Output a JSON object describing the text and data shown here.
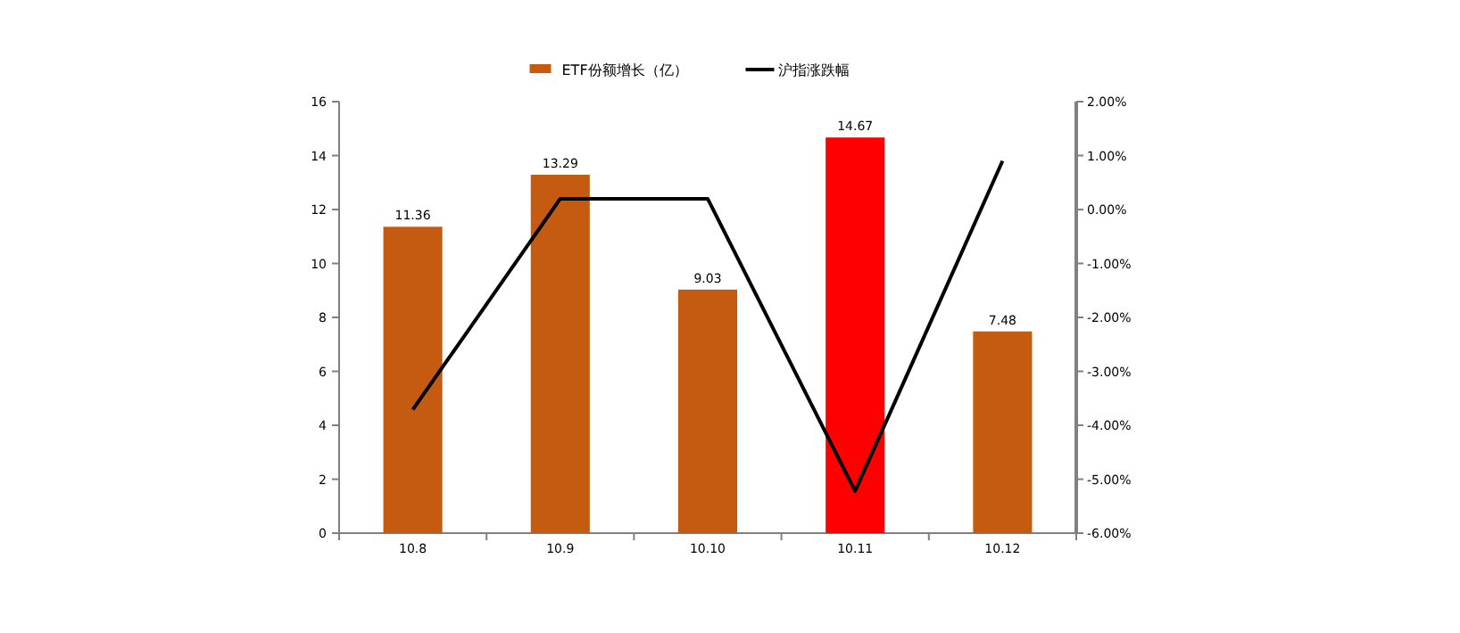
{
  "chart_data": {
    "type": "bar",
    "categories": [
      "10.8",
      "10.9",
      "10.10",
      "10.11",
      "10.12"
    ],
    "series": [
      {
        "name": "ETF份额增长（亿）",
        "color": "#c55a11",
        "colors": [
          "#c55a11",
          "#c55a11",
          "#c55a11",
          "#ff0000",
          "#c55a11"
        ],
        "values": [
          11.36,
          13.29,
          9.03,
          14.67,
          7.48
        ],
        "value_labels": [
          "11.36",
          "13.29",
          "9.03",
          "14.67",
          "7.48"
        ]
      },
      {
        "name": "沪指涨跌幅",
        "type": "line",
        "axis": "y2",
        "color": "#000000",
        "values": [
          -3.71,
          0.2,
          0.2,
          -5.22,
          0.9
        ]
      }
    ],
    "ylim": [
      0,
      16
    ],
    "yticks": [
      0,
      2,
      4,
      6,
      8,
      10,
      12,
      14,
      16
    ],
    "y2lim": [
      -6,
      2
    ],
    "y2ticks": [
      {
        "value": 2,
        "label": "2.00%"
      },
      {
        "value": 1,
        "label": "1.00%"
      },
      {
        "value": 0,
        "label": "0.00%"
      },
      {
        "value": -1,
        "label": "-1.00%"
      },
      {
        "value": -2,
        "label": "-2.00%"
      },
      {
        "value": -3,
        "label": "-3.00%"
      },
      {
        "value": -4,
        "label": "-4.00%"
      },
      {
        "value": -5,
        "label": "-5.00%"
      },
      {
        "value": -6,
        "label": "-6.00%"
      }
    ],
    "legend": "top",
    "marker": "none",
    "line_style": "solid"
  }
}
